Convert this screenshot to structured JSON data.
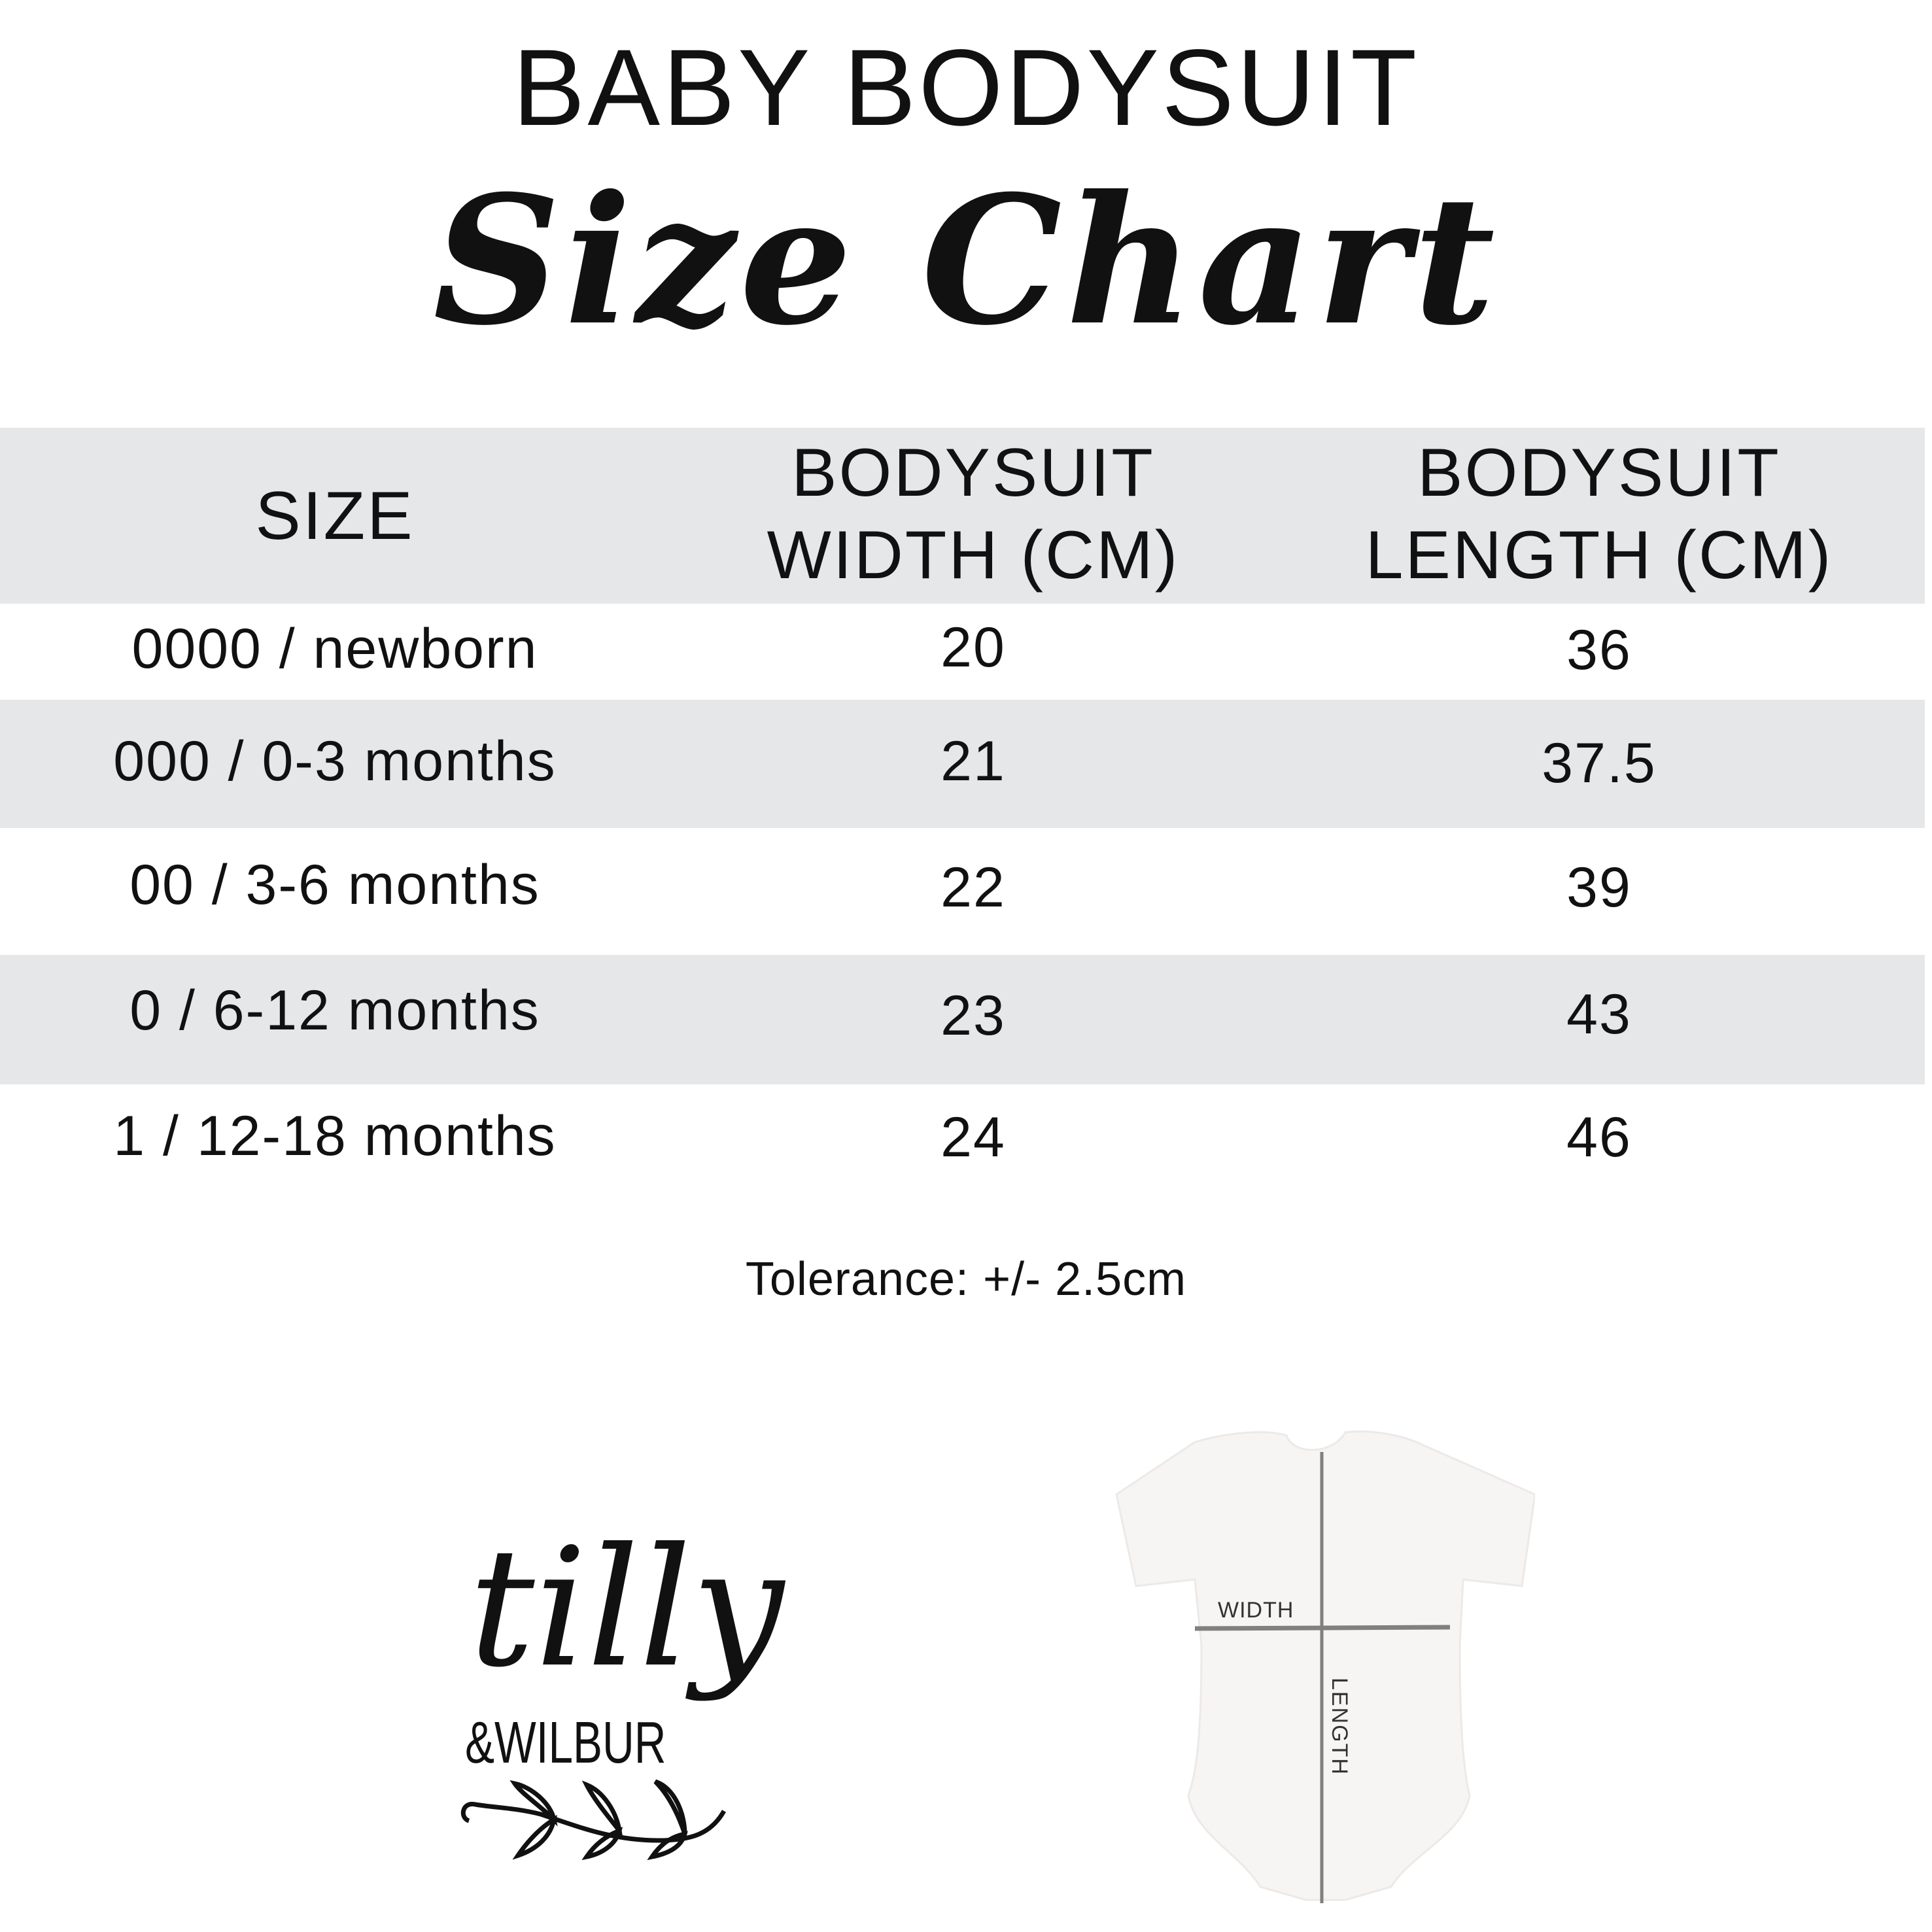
{
  "header": {
    "title": "BABY BODYSUIT",
    "subtitle": "Size Chart"
  },
  "table": {
    "columns": [
      "SIZE",
      "BODYSUIT WIDTH (CM)",
      "BODYSUIT LENGTH (CM)"
    ],
    "column_lines": [
      [
        "SIZE"
      ],
      [
        "BODYSUIT",
        "WIDTH (CM)"
      ],
      [
        "BODYSUIT",
        "LENGTH (CM)"
      ]
    ],
    "rows": [
      {
        "size": "0000 / newborn",
        "width": "20",
        "length": "36"
      },
      {
        "size": "000 / 0-3 months",
        "width": "21",
        "length": "37.5"
      },
      {
        "size": "00 / 3-6 months",
        "width": "22",
        "length": "39"
      },
      {
        "size": "0 / 6-12 months",
        "width": "23",
        "length": "43"
      },
      {
        "size": "1 / 12-18 months",
        "width": "24",
        "length": "46"
      }
    ],
    "stripe_color": "#e6e7e8"
  },
  "note": "Tolerance: +/- 2.5cm",
  "logo": {
    "line1": "tilly",
    "line2": "&WILBUR"
  },
  "diagram": {
    "width_label": "WIDTH",
    "length_label": "LENGTH",
    "line_color": "#808080"
  }
}
